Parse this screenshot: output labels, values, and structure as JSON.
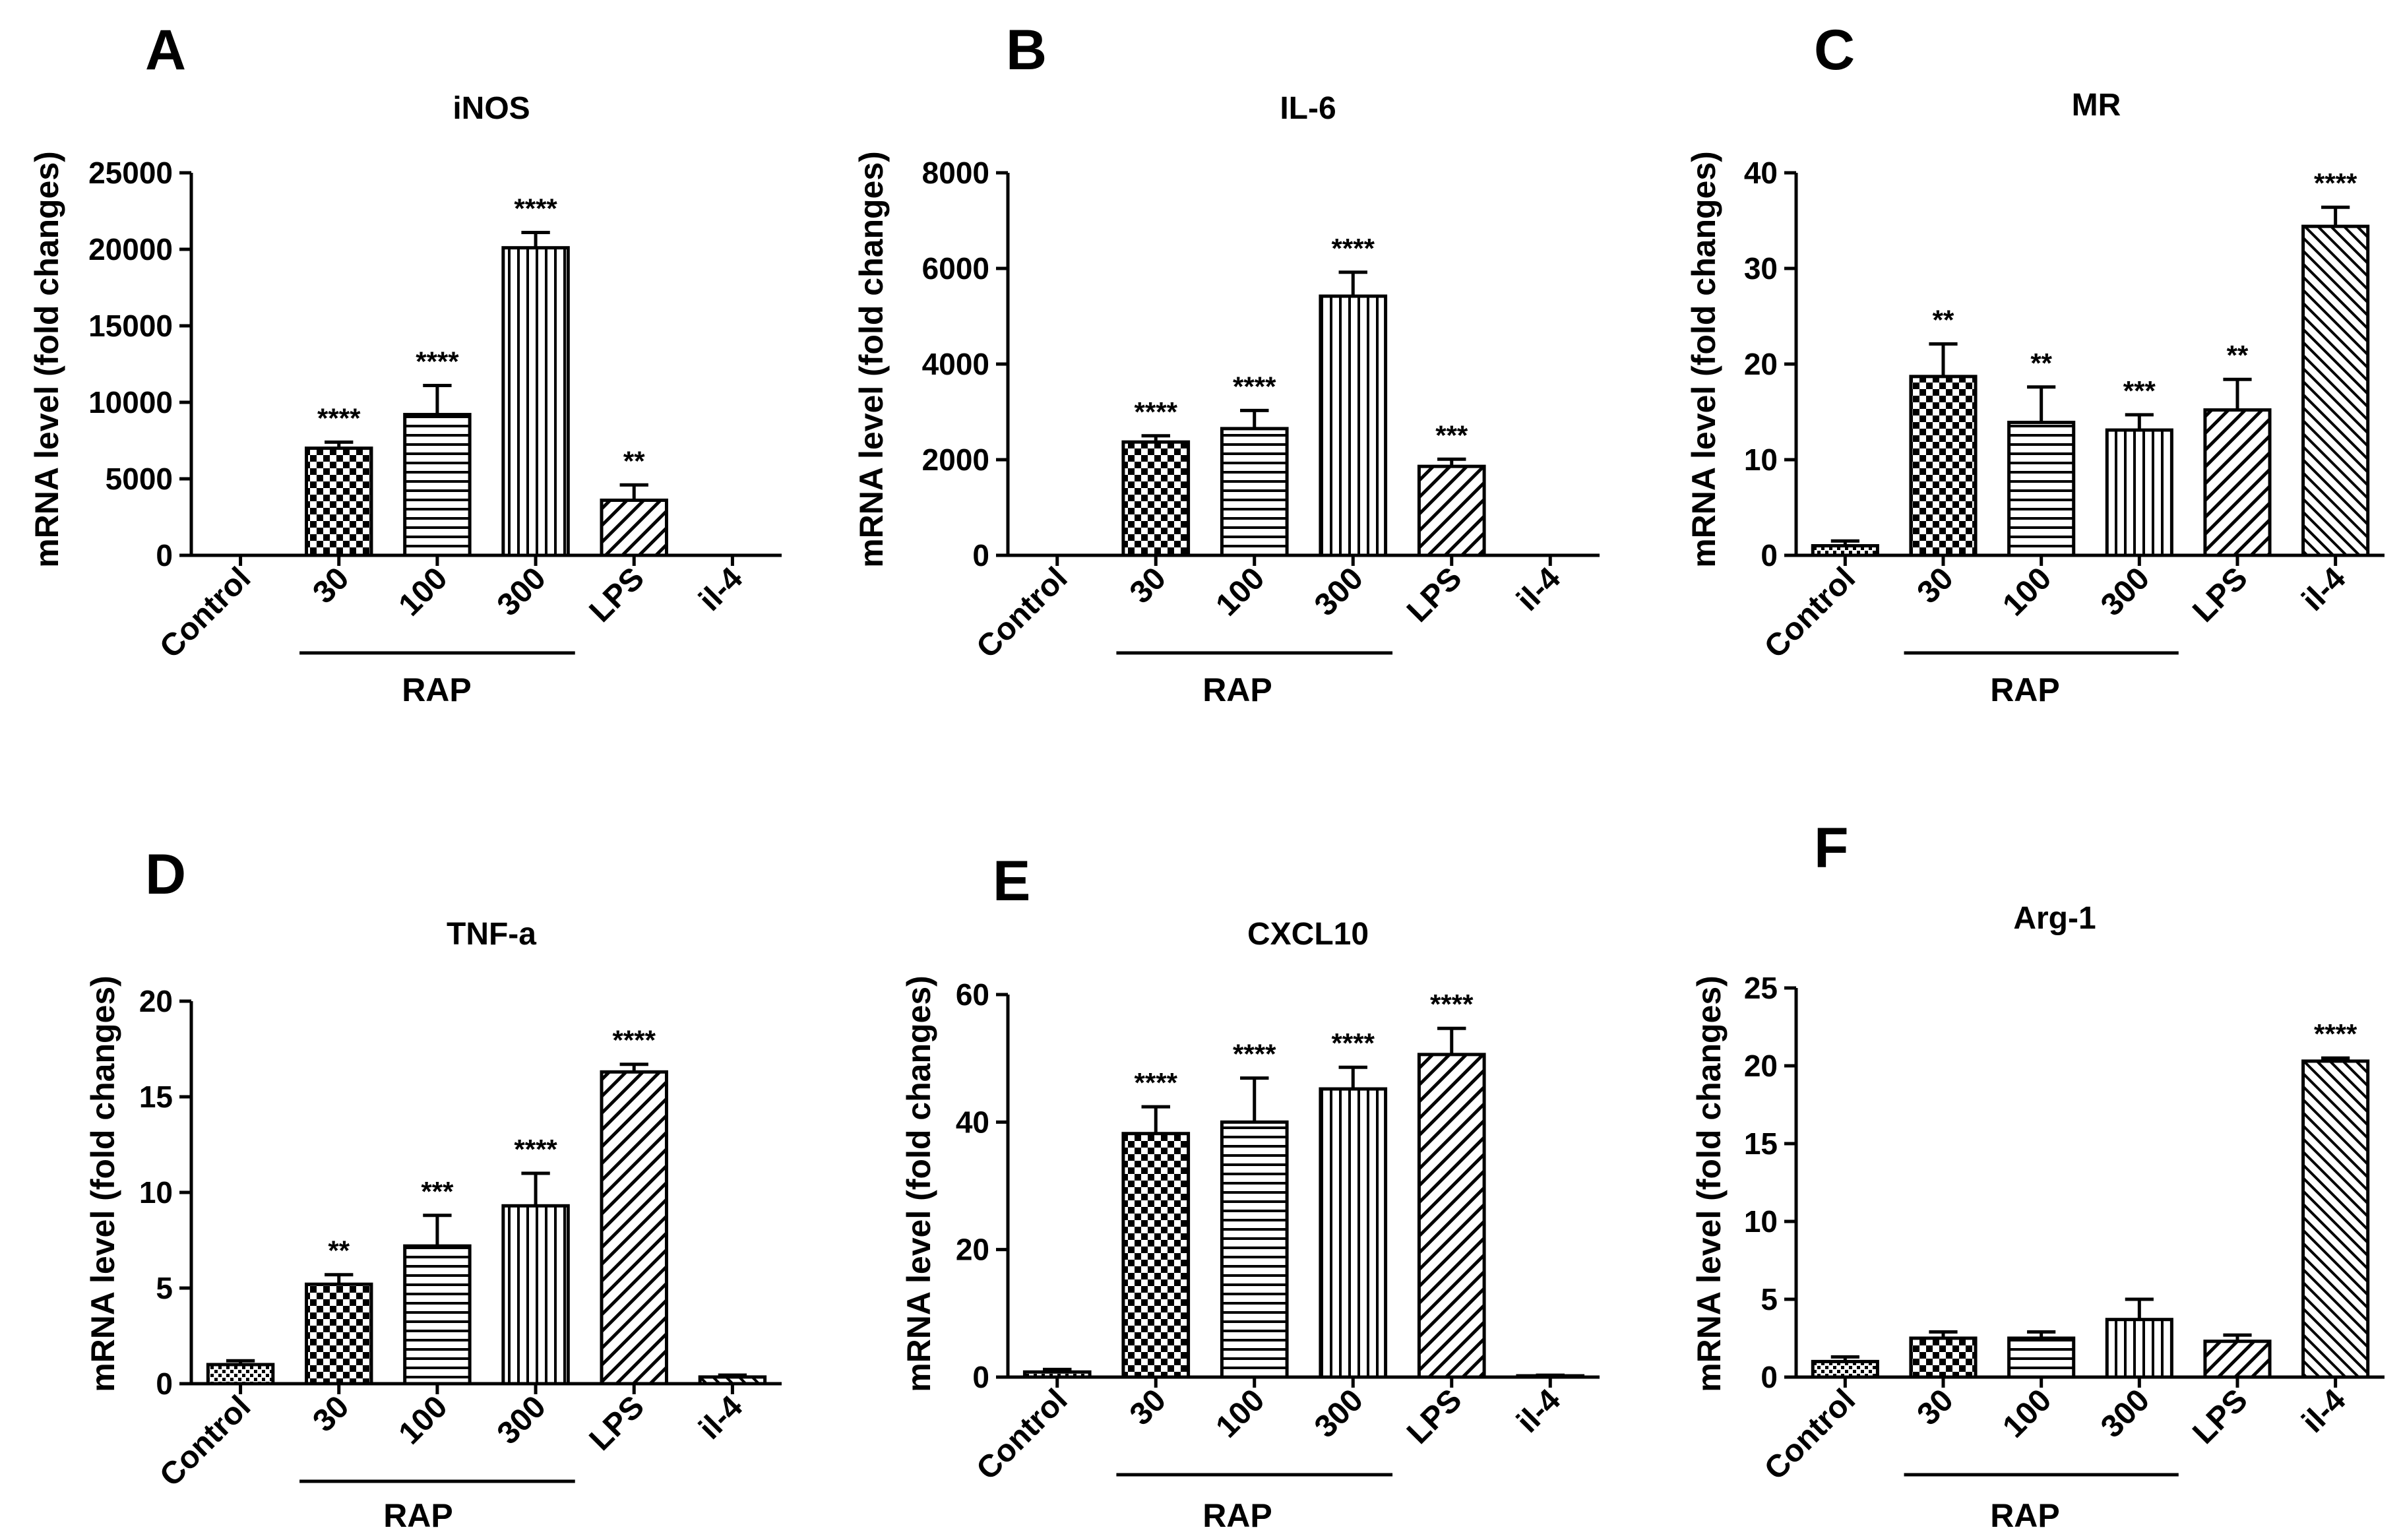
{
  "figure": {
    "y_label": "mRNA level (fold changes)",
    "group_label": "RAP"
  },
  "chart_data": [
    {
      "type": "bar",
      "panel": "A",
      "title": "iNOS",
      "ylabel": "mRNA level (fold changes)",
      "categories": [
        "Control",
        "30",
        "100",
        "300",
        "LPS",
        "il-4"
      ],
      "values": [
        0,
        7000,
        9200,
        20100,
        3600,
        0
      ],
      "errors": [
        0,
        400,
        1900,
        1000,
        1000,
        0
      ],
      "significance": [
        "",
        "****",
        "****",
        "****",
        "**",
        ""
      ],
      "patterns": [
        "dots",
        "checker",
        "hlines",
        "vlines",
        "diag",
        "diag2"
      ],
      "ylim": [
        0,
        25000
      ],
      "yticks": [
        "0",
        "5000",
        "10000",
        "15000",
        "20000",
        "25000"
      ],
      "group": {
        "label": "RAP",
        "from": 1,
        "to": 3
      }
    },
    {
      "type": "bar",
      "panel": "B",
      "title": "IL-6",
      "ylabel": "mRNA level (fold changes)",
      "categories": [
        "Control",
        "30",
        "100",
        "300",
        "LPS",
        "il-4"
      ],
      "values": [
        0,
        2370,
        2650,
        5420,
        1860,
        0
      ],
      "errors": [
        0,
        130,
        380,
        500,
        150,
        0
      ],
      "significance": [
        "",
        "****",
        "****",
        "****",
        "***",
        ""
      ],
      "patterns": [
        "dots",
        "checker",
        "hlines",
        "vlines",
        "diag",
        "diag2"
      ],
      "ylim": [
        0,
        8000
      ],
      "yticks": [
        "0",
        "2000",
        "4000",
        "6000",
        "8000"
      ],
      "group": {
        "label": "RAP",
        "from": 1,
        "to": 3
      }
    },
    {
      "type": "bar",
      "panel": "C",
      "title": "MR",
      "ylabel": "mRNA level (fold changes)",
      "categories": [
        "Control",
        "30",
        "100",
        "300",
        "LPS",
        "il-4"
      ],
      "values": [
        1.0,
        18.7,
        13.9,
        13.1,
        15.2,
        34.4
      ],
      "errors": [
        0.5,
        3.4,
        3.7,
        1.6,
        3.2,
        2.0
      ],
      "significance": [
        "",
        "**",
        "**",
        "***",
        "**",
        "****"
      ],
      "patterns": [
        "dots",
        "checker",
        "hlines",
        "vlines",
        "diag",
        "diag2"
      ],
      "ylim": [
        0,
        40
      ],
      "yticks": [
        "0",
        "10",
        "20",
        "30",
        "40"
      ],
      "group": {
        "label": "RAP",
        "from": 1,
        "to": 3
      }
    },
    {
      "type": "bar",
      "panel": "D",
      "title": "TNF-a",
      "ylabel": "mRNA level (fold changes)",
      "categories": [
        "Control",
        "30",
        "100",
        "300",
        "LPS",
        "il-4"
      ],
      "values": [
        1.0,
        5.2,
        7.2,
        9.3,
        16.3,
        0.35
      ],
      "errors": [
        0.2,
        0.5,
        1.6,
        1.7,
        0.4,
        0.1
      ],
      "significance": [
        "",
        "**",
        "***",
        "****",
        "****",
        ""
      ],
      "patterns": [
        "dots",
        "checker",
        "hlines",
        "vlines",
        "diag",
        "diag2"
      ],
      "ylim": [
        0,
        20
      ],
      "yticks": [
        "0",
        "5",
        "10",
        "15",
        "20"
      ],
      "group": {
        "label": "RAP",
        "from": 1,
        "to": 3
      }
    },
    {
      "type": "bar",
      "panel": "E",
      "title": "CXCL10",
      "ylabel": "mRNA level (fold changes)",
      "categories": [
        "Control",
        "30",
        "100",
        "300",
        "LPS",
        "il-4"
      ],
      "values": [
        0.8,
        38.2,
        40.0,
        45.2,
        50.6,
        0.2
      ],
      "errors": [
        0.4,
        4.2,
        6.9,
        3.4,
        4.1,
        0.1
      ],
      "significance": [
        "",
        "****",
        "****",
        "****",
        "****",
        ""
      ],
      "patterns": [
        "dots",
        "checker",
        "hlines",
        "vlines",
        "diag",
        "diag2"
      ],
      "ylim": [
        0,
        60
      ],
      "yticks": [
        "0",
        "20",
        "40",
        "60"
      ],
      "group": {
        "label": "RAP",
        "from": 1,
        "to": 3
      }
    },
    {
      "type": "bar",
      "panel": "F",
      "title": "Arg-1",
      "ylabel": "mRNA level (fold changes)",
      "categories": [
        "Control",
        "30",
        "100",
        "300",
        "LPS",
        "il-4"
      ],
      "values": [
        1.0,
        2.5,
        2.5,
        3.7,
        2.3,
        20.3
      ],
      "errors": [
        0.3,
        0.4,
        0.4,
        1.3,
        0.4,
        0.2
      ],
      "significance": [
        "",
        "",
        "",
        "",
        "",
        "****"
      ],
      "patterns": [
        "dots",
        "checker",
        "hlines",
        "vlines",
        "diag",
        "diag2"
      ],
      "ylim": [
        0,
        25
      ],
      "yticks": [
        "0",
        "5",
        "10",
        "15",
        "20",
        "25"
      ],
      "group": {
        "label": "RAP",
        "from": 1,
        "to": 3
      }
    }
  ]
}
